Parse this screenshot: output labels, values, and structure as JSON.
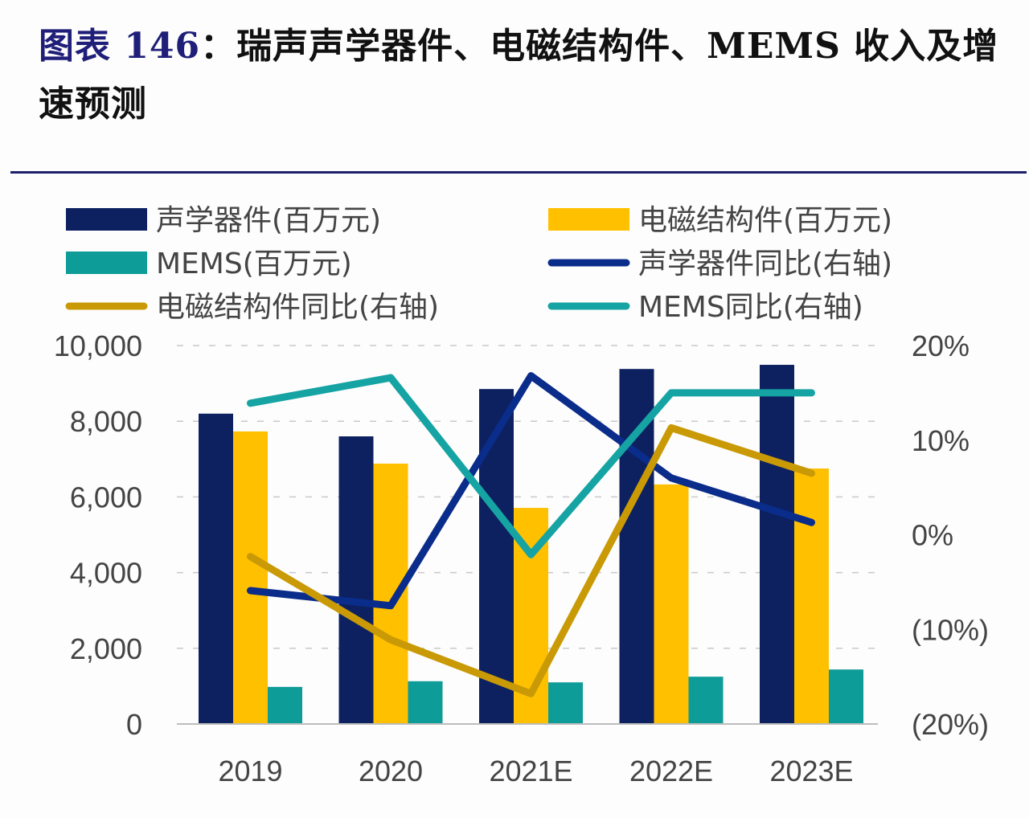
{
  "header": {
    "title_prefix": "图表 146",
    "title_rest": "：瑞声声学器件、电磁结构件、MEMS 收入及增速预测"
  },
  "chart_data": {
    "type": "bar",
    "title": "图表 146：瑞声声学器件、电磁结构件、MEMS 收入及增速预测",
    "categories": [
      "2019",
      "2020",
      "2021E",
      "2022E",
      "2023E"
    ],
    "y_left": {
      "ylim": [
        0,
        10000
      ],
      "ticks": [
        0,
        2000,
        4000,
        6000,
        8000,
        10000
      ],
      "tick_labels": [
        "0",
        "2,000",
        "4,000",
        "6,000",
        "8,000",
        "10,000"
      ]
    },
    "y_right": {
      "ylim": [
        -0.2,
        0.2
      ],
      "ticks": [
        -0.2,
        -0.1,
        0,
        0.1,
        0.2
      ],
      "tick_labels": [
        "(20%)",
        "(10%)",
        "0%",
        "10%",
        "20%"
      ]
    },
    "grid": true,
    "legend_position": "top",
    "series": [
      {
        "name": "声学器件(百万元)",
        "kind": "bar",
        "axis": "left",
        "color": "#0d2160",
        "values": [
          8200,
          7600,
          8850,
          9380,
          9490
        ]
      },
      {
        "name": "电磁结构件(百万元)",
        "kind": "bar",
        "axis": "left",
        "color": "#ffc000",
        "values": [
          7730,
          6880,
          5710,
          6330,
          6750
        ]
      },
      {
        "name": "MEMS(百万元)",
        "kind": "bar",
        "axis": "left",
        "color": "#0e9c98",
        "values": [
          980,
          1130,
          1100,
          1250,
          1440
        ]
      },
      {
        "name": "声学器件同比(右轴)",
        "kind": "line",
        "axis": "right",
        "color": "#0a2c8a",
        "values": [
          -0.059,
          -0.075,
          0.168,
          0.06,
          0.013
        ]
      },
      {
        "name": "电磁结构件同比(右轴)",
        "kind": "line",
        "axis": "right",
        "color": "#c99a06",
        "values": [
          -0.023,
          -0.111,
          -0.168,
          0.113,
          0.065
        ]
      },
      {
        "name": "MEMS同比(右轴)",
        "kind": "line",
        "axis": "right",
        "color": "#16a3a3",
        "values": [
          0.139,
          0.166,
          -0.021,
          0.15,
          0.15
        ]
      }
    ],
    "legend": [
      {
        "label": "声学器件(百万元)",
        "kind": "bar",
        "color": "#0d2160"
      },
      {
        "label": "电磁结构件(百万元)",
        "kind": "bar",
        "color": "#ffc000"
      },
      {
        "label": "MEMS(百万元)",
        "kind": "bar",
        "color": "#0e9c98"
      },
      {
        "label": "声学器件同比(右轴)",
        "kind": "line",
        "color": "#0a2c8a"
      },
      {
        "label": "电磁结构件同比(右轴)",
        "kind": "line",
        "color": "#c99a06"
      },
      {
        "label": "MEMS同比(右轴)",
        "kind": "line",
        "color": "#16a3a3"
      }
    ]
  }
}
